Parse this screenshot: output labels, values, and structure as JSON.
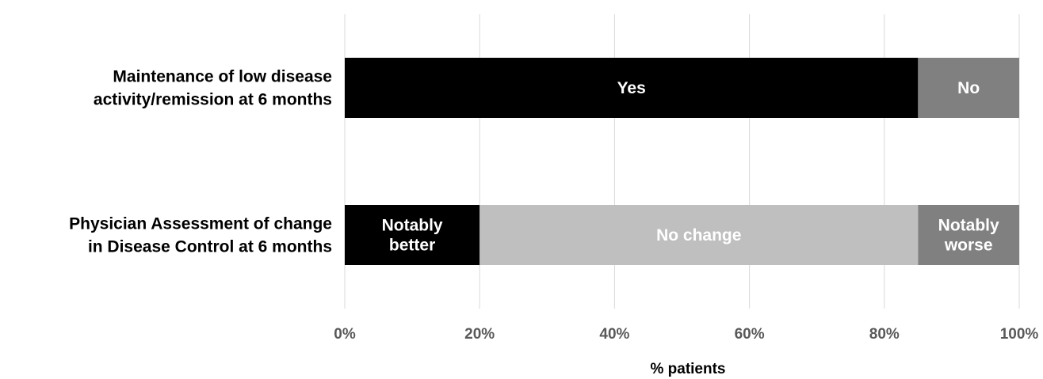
{
  "chart_data": {
    "type": "bar",
    "orientation": "horizontal",
    "stacked": true,
    "percent_stacked": true,
    "xlabel": "% patients",
    "ylabel": "",
    "xlim": [
      0,
      100
    ],
    "x_ticks": [
      "0%",
      "20%",
      "40%",
      "60%",
      "80%",
      "100%"
    ],
    "grid": "vertical gridlines",
    "legend": "none",
    "categories": [
      "Maintenance of low disease activity/remission at 6 months",
      "Physician Assessment of change in Disease Control at 6 months"
    ],
    "category_label_lines": [
      [
        "Maintenance of low disease",
        "activity/remission at 6 months"
      ],
      [
        "Physician Assessment of change",
        "in Disease Control at 6 months"
      ]
    ],
    "bars": [
      {
        "category": "Maintenance of low disease activity/remission at 6 months",
        "segments": [
          {
            "label": "Yes",
            "label_lines": [
              "Yes"
            ],
            "value": 85,
            "color": "#000000",
            "text_color": "#ffffff"
          },
          {
            "label": "No",
            "label_lines": [
              "No"
            ],
            "value": 15,
            "color": "#808080",
            "text_color": "#ffffff"
          }
        ]
      },
      {
        "category": "Physician Assessment of change in Disease Control at 6 months",
        "segments": [
          {
            "label": "Notably better",
            "label_lines": [
              "Notably",
              "better"
            ],
            "value": 20,
            "color": "#000000",
            "text_color": "#ffffff"
          },
          {
            "label": "No change",
            "label_lines": [
              "No change"
            ],
            "value": 65,
            "color": "#bfbfbf",
            "text_color": "#ffffff"
          },
          {
            "label": "Notably worse",
            "label_lines": [
              "Notably",
              "worse"
            ],
            "value": 15,
            "color": "#808080",
            "text_color": "#ffffff"
          }
        ]
      }
    ]
  }
}
